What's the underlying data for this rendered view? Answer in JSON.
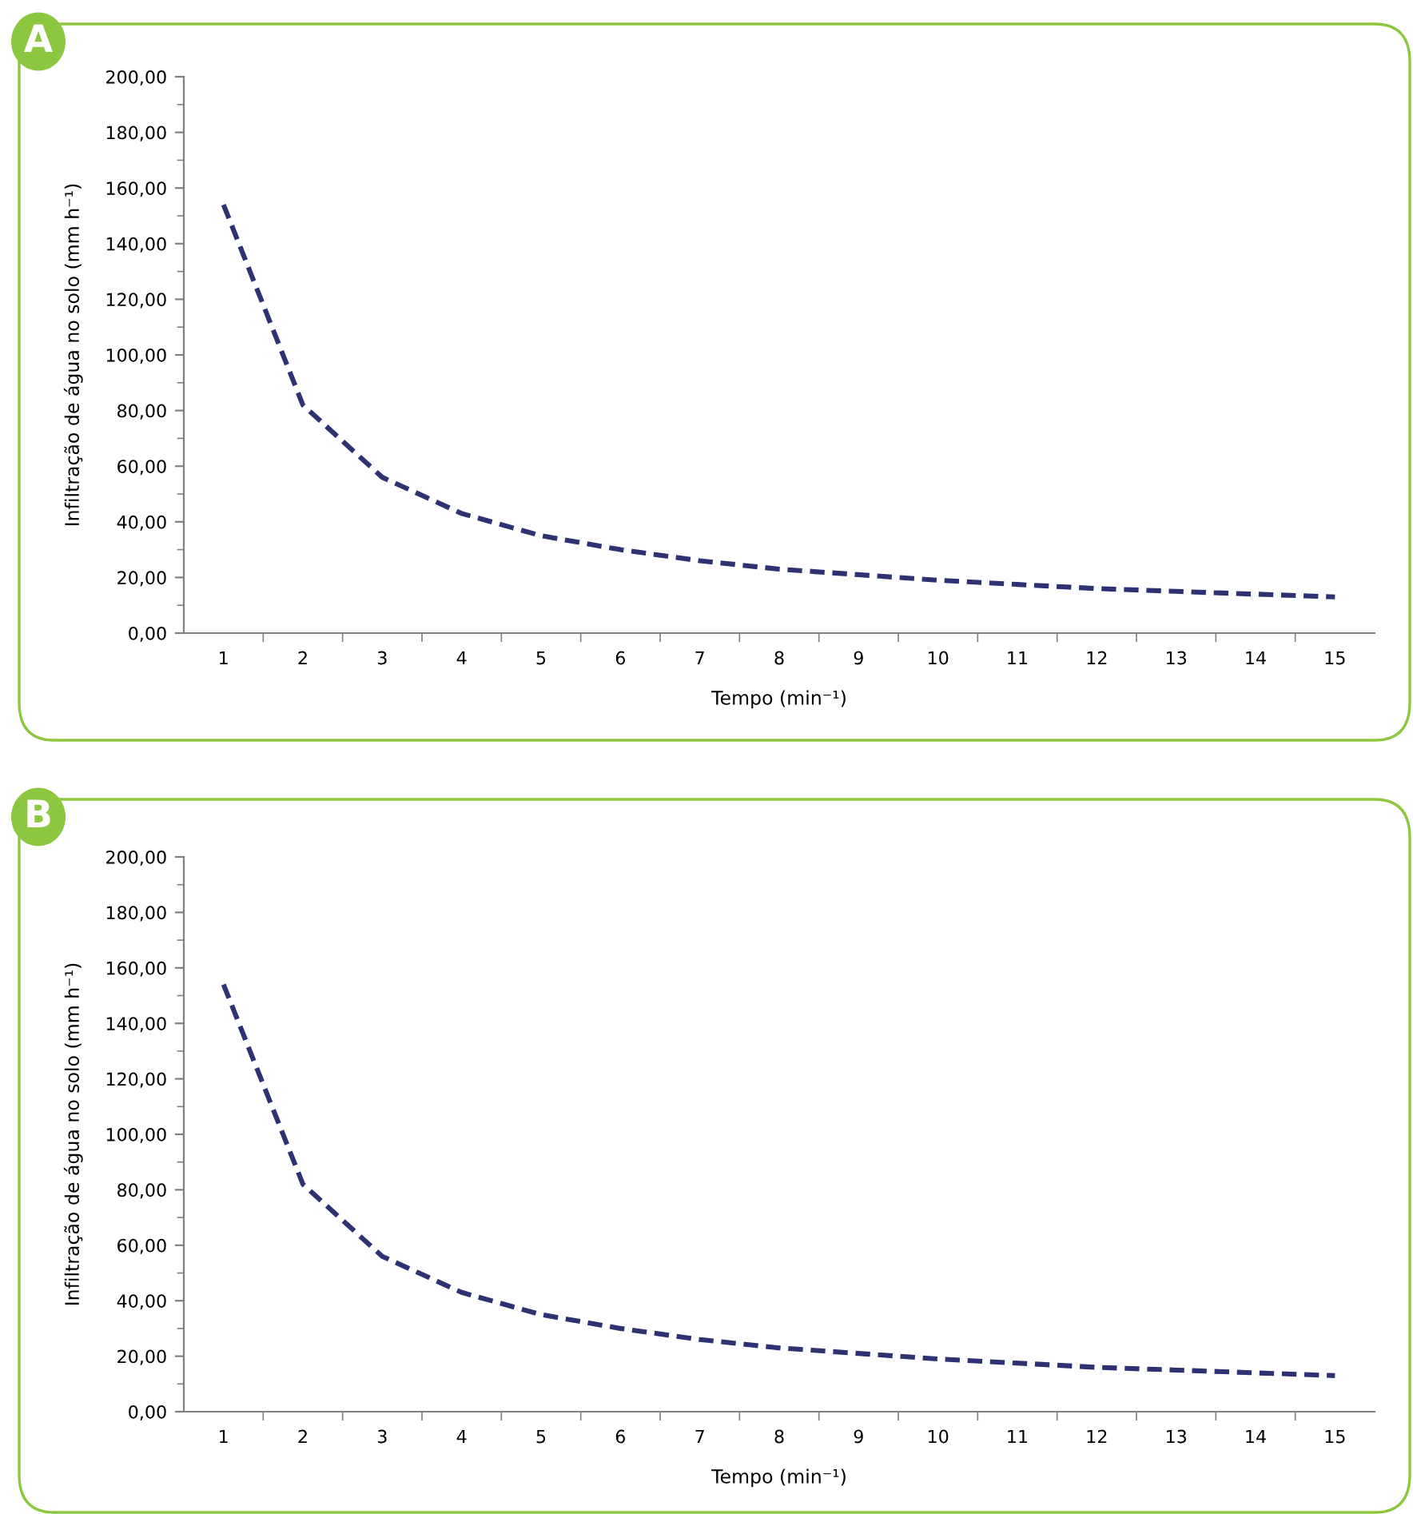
{
  "chart_data": [
    {
      "type": "line",
      "title": "A",
      "xlabel": "Tempo (min⁻¹)",
      "ylabel": "Infiltração de água no solo (mm h⁻¹)",
      "categories": [
        "1",
        "2",
        "3",
        "4",
        "5",
        "6",
        "7",
        "8",
        "9",
        "10",
        "11",
        "12",
        "13",
        "14",
        "15"
      ],
      "series": [
        {
          "color": "#2e3272",
          "values": [
            154,
            82,
            56,
            43,
            35,
            30,
            26,
            23,
            21,
            19,
            17.5,
            16,
            15,
            14,
            13
          ]
        }
      ],
      "ylim": [
        0,
        200
      ],
      "yticks": [
        {
          "value": 0,
          "label": "0,00"
        },
        {
          "value": 10,
          "label": null
        },
        {
          "value": 20,
          "label": "20,00"
        },
        {
          "value": 30,
          "label": null
        },
        {
          "value": 40,
          "label": "40,00"
        },
        {
          "value": 50,
          "label": null
        },
        {
          "value": 60,
          "label": "60,00"
        },
        {
          "value": 70,
          "label": null
        },
        {
          "value": 80,
          "label": "80,00"
        },
        {
          "value": 90,
          "label": null
        },
        {
          "value": 100,
          "label": "100,00"
        },
        {
          "value": 110,
          "label": null
        },
        {
          "value": 120,
          "label": "120,00"
        },
        {
          "value": 130,
          "label": null
        },
        {
          "value": 140,
          "label": "140,00"
        },
        {
          "value": 150,
          "label": null
        },
        {
          "value": 160,
          "label": "160,00"
        },
        {
          "value": 170,
          "label": null
        },
        {
          "value": 180,
          "label": "180,00"
        },
        {
          "value": 190,
          "label": null
        },
        {
          "value": 200,
          "label": "200,00"
        }
      ],
      "line_style": "dashed",
      "marker": "none",
      "grid": false,
      "legend": false
    },
    {
      "type": "line",
      "title": "B",
      "xlabel": "Tempo (min⁻¹)",
      "ylabel": "Infiltração de água no solo (mm h⁻¹)",
      "categories": [
        "1",
        "2",
        "3",
        "4",
        "5",
        "6",
        "7",
        "8",
        "9",
        "10",
        "11",
        "12",
        "13",
        "14",
        "15"
      ],
      "series": [
        {
          "color": "#2e3272",
          "values": [
            154,
            82,
            56,
            43,
            35,
            30,
            26,
            23,
            21,
            19,
            17.5,
            16,
            15,
            14,
            13
          ]
        }
      ],
      "ylim": [
        0,
        200
      ],
      "yticks": [
        {
          "value": 0,
          "label": "0,00"
        },
        {
          "value": 10,
          "label": null
        },
        {
          "value": 20,
          "label": "20,00"
        },
        {
          "value": 30,
          "label": null
        },
        {
          "value": 40,
          "label": "40,00"
        },
        {
          "value": 50,
          "label": null
        },
        {
          "value": 60,
          "label": "60,00"
        },
        {
          "value": 70,
          "label": null
        },
        {
          "value": 80,
          "label": "80,00"
        },
        {
          "value": 90,
          "label": null
        },
        {
          "value": 100,
          "label": "100,00"
        },
        {
          "value": 110,
          "label": null
        },
        {
          "value": 120,
          "label": "120,00"
        },
        {
          "value": 130,
          "label": null
        },
        {
          "value": 140,
          "label": "140,00"
        },
        {
          "value": 150,
          "label": null
        },
        {
          "value": 160,
          "label": "160,00"
        },
        {
          "value": 170,
          "label": null
        },
        {
          "value": 180,
          "label": "180,00"
        },
        {
          "value": 190,
          "label": null
        },
        {
          "value": 200,
          "label": "200,00"
        }
      ],
      "line_style": "dashed",
      "marker": "none",
      "grid": false,
      "legend": false
    }
  ]
}
